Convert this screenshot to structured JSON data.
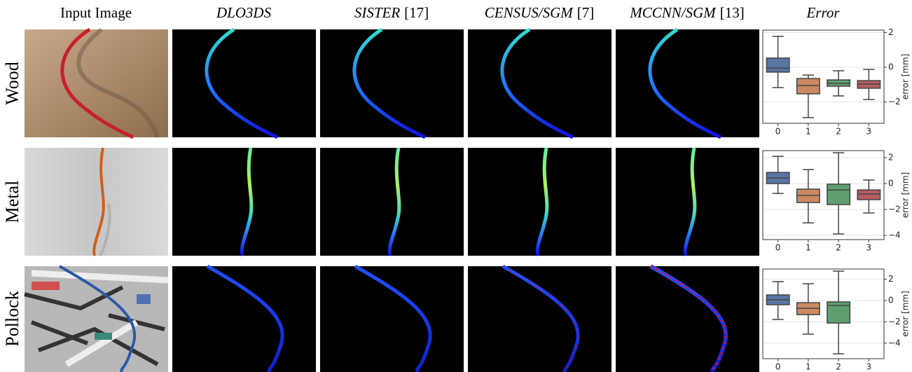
{
  "header": {
    "columns": [
      {
        "name": "Input Image"
      },
      {
        "name": "DLO3DS"
      },
      {
        "name": "SISTER",
        "ref": "[17]"
      },
      {
        "name": "CENSUS/SGM",
        "ref": "[7]"
      },
      {
        "name": "MCCNN/SGM",
        "ref": "[13]"
      },
      {
        "name": "Error"
      }
    ]
  },
  "rows": [
    {
      "label": "Wood"
    },
    {
      "label": "Metal"
    },
    {
      "label": "Pollock"
    }
  ],
  "chart_data": [
    {
      "type": "box",
      "categories": [
        "0",
        "1",
        "2",
        "3"
      ],
      "ylabel": "error [mm]",
      "ylim": [
        -3.23,
        2.14
      ],
      "yticks": [
        {
          "value": -2,
          "label": "−2"
        },
        0,
        2
      ],
      "grid": true,
      "boxes": [
        {
          "color": "#5875a4",
          "min": -1.17,
          "q1": -0.28,
          "median": -0.05,
          "q3": 0.53,
          "max": 1.78
        },
        {
          "color": "#cc8963",
          "min": -2.9,
          "q1": -1.53,
          "median": -1.05,
          "q3": -0.65,
          "max": -0.45
        },
        {
          "color": "#5f9e6e",
          "min": -1.65,
          "q1": -1.09,
          "median": -0.93,
          "q3": -0.73,
          "max": -0.2
        },
        {
          "color": "#b55d60",
          "min": -1.86,
          "q1": -1.21,
          "median": -0.97,
          "q3": -0.77,
          "max": -0.12
        }
      ]
    },
    {
      "type": "box",
      "categories": [
        "0",
        "1",
        "2",
        "3"
      ],
      "ylabel": "error [mm]",
      "ylim": [
        -4.32,
        2.54
      ],
      "yticks": [
        {
          "value": -4,
          "label": "−4"
        },
        {
          "value": -2,
          "label": "−2"
        },
        0,
        2
      ],
      "grid": true,
      "boxes": [
        {
          "color": "#5875a4",
          "min": -0.76,
          "q1": 0,
          "median": 0.43,
          "q3": 0.86,
          "max": 2.1
        },
        {
          "color": "#cc8963",
          "min": -3.03,
          "q1": -1.46,
          "median": -0.92,
          "q3": -0.43,
          "max": 1.08
        },
        {
          "color": "#5f9e6e",
          "min": -3.89,
          "q1": -1.62,
          "median": -0.49,
          "q3": -0.05,
          "max": 2.38
        },
        {
          "color": "#b55d60",
          "min": -2.27,
          "q1": -1.24,
          "median": -0.81,
          "q3": -0.49,
          "max": 0.27
        }
      ]
    },
    {
      "type": "box",
      "categories": [
        "0",
        "1",
        "2",
        "3"
      ],
      "ylabel": "error [mm]",
      "ylim": [
        -5.46,
        2.96
      ],
      "yticks": [
        {
          "value": -4,
          "label": "−4"
        },
        {
          "value": -2,
          "label": "−2"
        },
        0,
        2
      ],
      "grid": true,
      "boxes": [
        {
          "color": "#5875a4",
          "min": -1.78,
          "q1": -0.39,
          "median": 0.07,
          "q3": 0.53,
          "max": 1.78
        },
        {
          "color": "#cc8963",
          "min": -3.16,
          "q1": -1.32,
          "median": -0.72,
          "q3": -0.2,
          "max": 1.58
        },
        {
          "color": "#5f9e6e",
          "min": -5.0,
          "q1": -2.11,
          "median": -0.46,
          "q3": -0.13,
          "max": 2.76
        },
        null
      ]
    }
  ]
}
